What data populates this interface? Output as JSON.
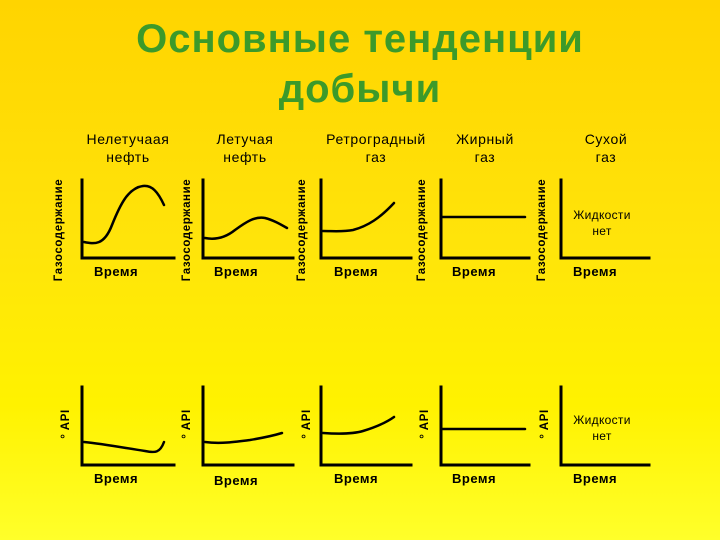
{
  "title": {
    "line1": "Основные тенденции",
    "line2": "добычи"
  },
  "columns": [
    {
      "line1": "Нелетучаая",
      "line2": "нефть"
    },
    {
      "line1": "Летучая",
      "line2": "нефть"
    },
    {
      "line1": "Ретроградный",
      "line2": "газ"
    },
    {
      "line1": "Жирный",
      "line2": "газ"
    },
    {
      "line1": "Сухой",
      "line2": "газ"
    }
  ],
  "row1": {
    "y_axis_label": "Газосодержание",
    "x_axis_label": "Время",
    "note": {
      "line1": "Жидкости",
      "line2": "нет"
    }
  },
  "row2": {
    "y_axis_label": "° API",
    "x_axis_label": "Время",
    "note": {
      "line1": "Жидкости",
      "line2": "нет"
    }
  },
  "colors": {
    "title": "#3c9a2a",
    "background_top": "#ffd400",
    "background_bottom": "#ffff2a",
    "axes": "#000000",
    "curves": "#000000"
  }
}
